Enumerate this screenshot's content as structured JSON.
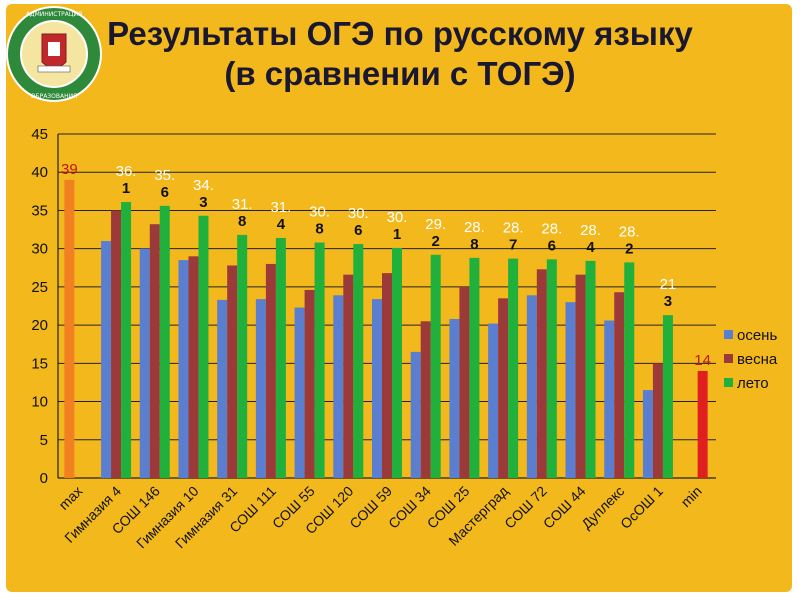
{
  "title_line1": "Результаты ОГЭ по русскому языку",
  "title_line2": "(в сравнении с ТОГЭ)",
  "logo_text": "Администрация города Перми · департамент образования",
  "colors": {
    "background": "#f2b81c",
    "autumn": "#5b7fd0",
    "spring": "#9b3a38",
    "summer": "#20b03c",
    "max": "#f08020",
    "min": "#e02020"
  },
  "chart_data": {
    "type": "bar",
    "categories": [
      "max",
      "Гимназия 4",
      "СОШ 146",
      "Гимназия 10",
      "Гимназия 31",
      "СОШ 111",
      "СОШ 55",
      "СОШ 120",
      "СОШ 59",
      "СОШ 34",
      "СОШ 25",
      "Мастерград",
      "СОШ 72",
      "СОШ 44",
      "Дуплекс",
      "ОсОШ 1",
      "min"
    ],
    "series": [
      {
        "name": "осень",
        "values": [
          null,
          31,
          30,
          28.5,
          23.3,
          23.4,
          22.3,
          23.9,
          23.4,
          16.5,
          20.8,
          20.2,
          23.9,
          23,
          20.6,
          11.5,
          null
        ]
      },
      {
        "name": "весна",
        "values": [
          null,
          35,
          33.2,
          29,
          27.8,
          28,
          24.6,
          26.6,
          26.8,
          20.5,
          25,
          23.5,
          27.3,
          26.6,
          24.3,
          15,
          null
        ]
      },
      {
        "name": "лето",
        "values": [
          null,
          36.1,
          35.6,
          34.3,
          31.8,
          31.4,
          30.8,
          30.6,
          30.1,
          29.2,
          28.8,
          28.7,
          28.6,
          28.4,
          28.2,
          21.3,
          null
        ]
      }
    ],
    "max_value": 39,
    "min_value": 14,
    "data_labels": {
      "max": "39",
      "summer": [
        "36.\n1",
        "35.\n6",
        "34.\n3",
        "31.\n8",
        "31.\n4",
        "30.\n8",
        "30.\n6",
        "30.\n1",
        "29.\n2",
        "28.\n8",
        "28.\n7",
        "28.\n6",
        "28.\n4",
        "28.\n2",
        "21\n3"
      ],
      "min": "14"
    },
    "y_ticks": [
      "0",
      "5",
      "10",
      "15",
      "20",
      "25",
      "30",
      "35",
      "40",
      "45"
    ],
    "ylim": [
      0,
      45
    ],
    "grid": true,
    "legend": {
      "position": "right",
      "entries": [
        "осень",
        "весна",
        "лето"
      ]
    }
  }
}
